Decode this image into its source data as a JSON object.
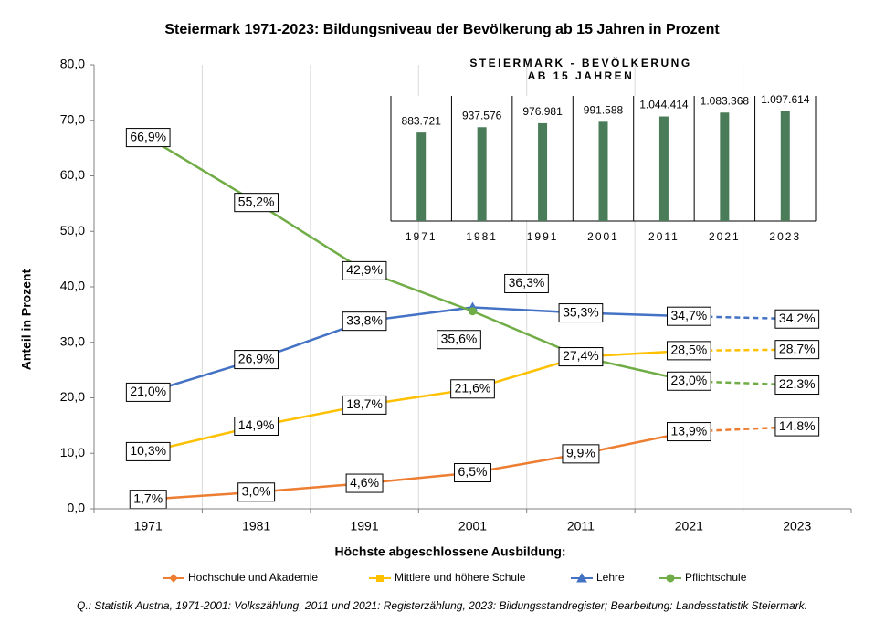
{
  "chart_data": [
    {
      "type": "line",
      "title": "Steiermark 1971-2023: Bildungsniveau der Bevölkerung ab 15 Jahren in Prozent",
      "x_label": "Höchste abgeschlossene Ausbildung:",
      "y_label": "Anteil in Prozent",
      "source": "Q.: Statistik Austria, 1971-2001: Volkszählung, 2011 und 2021: Registerzählung, 2023: Bildungsstandregister; Bearbeitung: Landesstatistik Steiermark.",
      "categories": [
        "1971",
        "1981",
        "1991",
        "2001",
        "2011",
        "2021",
        "2023"
      ],
      "dashed_from": "2021",
      "ylim": [
        0,
        80
      ],
      "yticks": [
        {
          "value": 0,
          "label": "0,0"
        },
        {
          "value": 10,
          "label": "10,0"
        },
        {
          "value": 20,
          "label": "20,0"
        },
        {
          "value": 30,
          "label": "30,0"
        },
        {
          "value": 40,
          "label": "40,0"
        },
        {
          "value": 50,
          "label": "50,0"
        },
        {
          "value": 60,
          "label": "60,0"
        },
        {
          "value": 70,
          "label": "70,0"
        },
        {
          "value": 80,
          "label": "80,0"
        }
      ],
      "grid": "x",
      "legend": "bottom",
      "series": [
        {
          "name": "Hochschule und Akademie",
          "color": "#ed7d31",
          "marker": "diamond",
          "values": [
            1.7,
            3.0,
            4.6,
            6.5,
            9.9,
            13.9,
            14.8
          ],
          "value_labels": [
            "1,7%",
            "3,0%",
            "4,6%",
            "6,5%",
            "9,9%",
            "13,9%",
            "14,8%"
          ]
        },
        {
          "name": "Mittlere und höhere Schule",
          "color": "#ffc000",
          "marker": "square",
          "values": [
            10.3,
            14.9,
            18.7,
            21.6,
            27.4,
            28.5,
            28.7
          ],
          "value_labels": [
            "10,3%",
            "14,9%",
            "18,7%",
            "21,6%",
            "27,4%",
            "28,5%",
            "28,7%"
          ]
        },
        {
          "name": "Lehre",
          "color": "#4472c4",
          "marker": "triangle",
          "values": [
            21.0,
            26.9,
            33.8,
            36.3,
            35.3,
            34.7,
            34.2
          ],
          "value_labels": [
            "21,0%",
            "26,9%",
            "33,8%",
            "36,3%",
            "35,3%",
            "34,7%",
            "34,2%"
          ]
        },
        {
          "name": "Pflichtschule",
          "color": "#70ad47",
          "marker": "circle",
          "values": [
            66.9,
            55.2,
            42.9,
            35.6,
            27.4,
            23.0,
            22.3
          ],
          "value_labels": [
            "66,9%",
            "55,2%",
            "42,9%",
            "35,6%",
            "27,4%",
            "23,0%",
            "22,3%"
          ]
        }
      ]
    },
    {
      "type": "bar",
      "title": [
        "STEIERMARK - BEVÖLKERUNG",
        "AB 15 JAHREN"
      ],
      "categories": [
        "1971",
        "1981",
        "1991",
        "2001",
        "2011",
        "2021",
        "2023"
      ],
      "values": [
        883721,
        937576,
        976981,
        991588,
        1044414,
        1083368,
        1097614
      ],
      "value_labels": [
        "883.721",
        "937.576",
        "976.981",
        "991.588",
        "1.044.414",
        "1.083.368",
        "1.097.614"
      ],
      "color": "#4a7c59",
      "ylim": [
        0,
        1250000
      ]
    }
  ]
}
